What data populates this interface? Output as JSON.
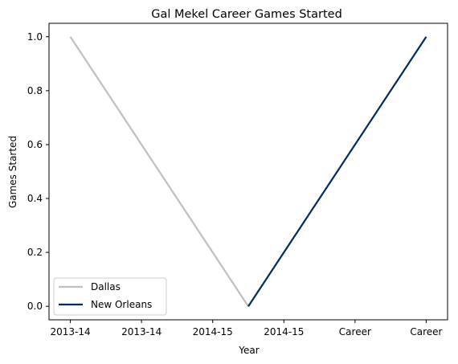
{
  "chart_data": {
    "type": "line",
    "title": "Gal Mekel Career Games Started",
    "xlabel": "Year",
    "ylabel": "Games Started",
    "categories": [
      "2013-14",
      "2013-14",
      "2014-15",
      "2014-15",
      "Career",
      "Career"
    ],
    "ylim": [
      -0.05,
      1.05
    ],
    "yticks": [
      "0.0",
      "0.2",
      "0.4",
      "0.6",
      "0.8",
      "1.0"
    ],
    "grid": false,
    "legend_position": "lower-left",
    "series": [
      {
        "name": "Dallas",
        "color": "#bfbfbf",
        "points": [
          [
            0,
            1
          ],
          [
            2.5,
            0
          ]
        ]
      },
      {
        "name": "New Orleans",
        "color": "#002b5c",
        "points": [
          [
            2.5,
            0
          ],
          [
            5,
            1
          ]
        ]
      }
    ]
  }
}
